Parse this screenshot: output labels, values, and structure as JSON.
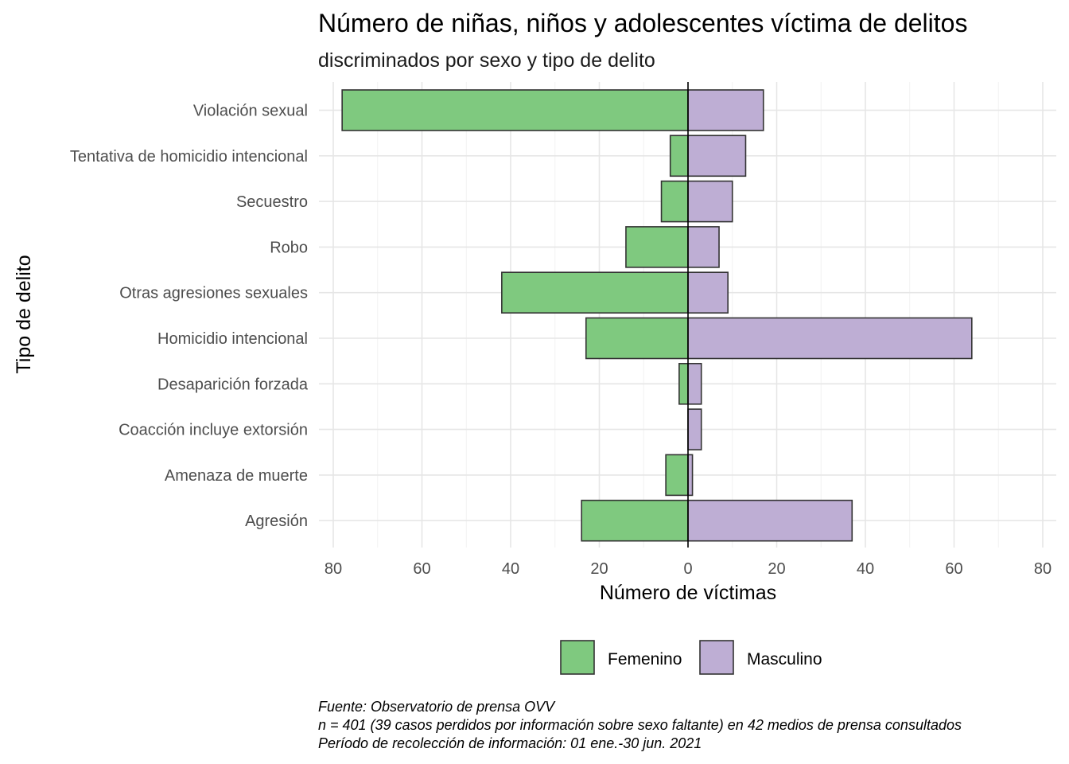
{
  "chart_data": {
    "type": "bar",
    "orientation": "horizontal-diverging",
    "title": "Número de niñas, niños y adolescentes víctima de delitos",
    "subtitle": "discriminados por sexo y tipo de delito",
    "xlabel": "Número de víctimas",
    "ylabel": "Tipo de delito",
    "xlim": [
      -80,
      80
    ],
    "xticks": [
      -80,
      -60,
      -40,
      -20,
      0,
      20,
      40,
      60,
      80
    ],
    "xtick_labels": [
      "80",
      "60",
      "40",
      "20",
      "0",
      "20",
      "40",
      "60",
      "80"
    ],
    "grid": true,
    "legend_position": "bottom",
    "categories": [
      "Violación sexual",
      "Tentativa de homicidio intencional",
      "Secuestro",
      "Robo",
      "Otras agresiones sexuales",
      "Homicidio intencional",
      "Desaparición forzada",
      "Coacción  incluye extorsión ",
      "Amenaza de muerte",
      "Agresión"
    ],
    "series": [
      {
        "name": "Femenino",
        "color": "#7fc97f",
        "direction": "left",
        "values": [
          78,
          4,
          6,
          14,
          42,
          23,
          2,
          0,
          5,
          24
        ]
      },
      {
        "name": "Masculino",
        "color": "#beaed4",
        "direction": "right",
        "values": [
          17,
          13,
          10,
          7,
          9,
          64,
          3,
          3,
          1,
          37
        ]
      }
    ],
    "caption": [
      "Fuente: Observatorio de prensa OVV",
      "n = 401 (39 casos perdidos por información sobre sexo faltante) en 42 medios de prensa consultados",
      "Período de recolección de información: 01 ene.-30 jun. 2021"
    ]
  }
}
